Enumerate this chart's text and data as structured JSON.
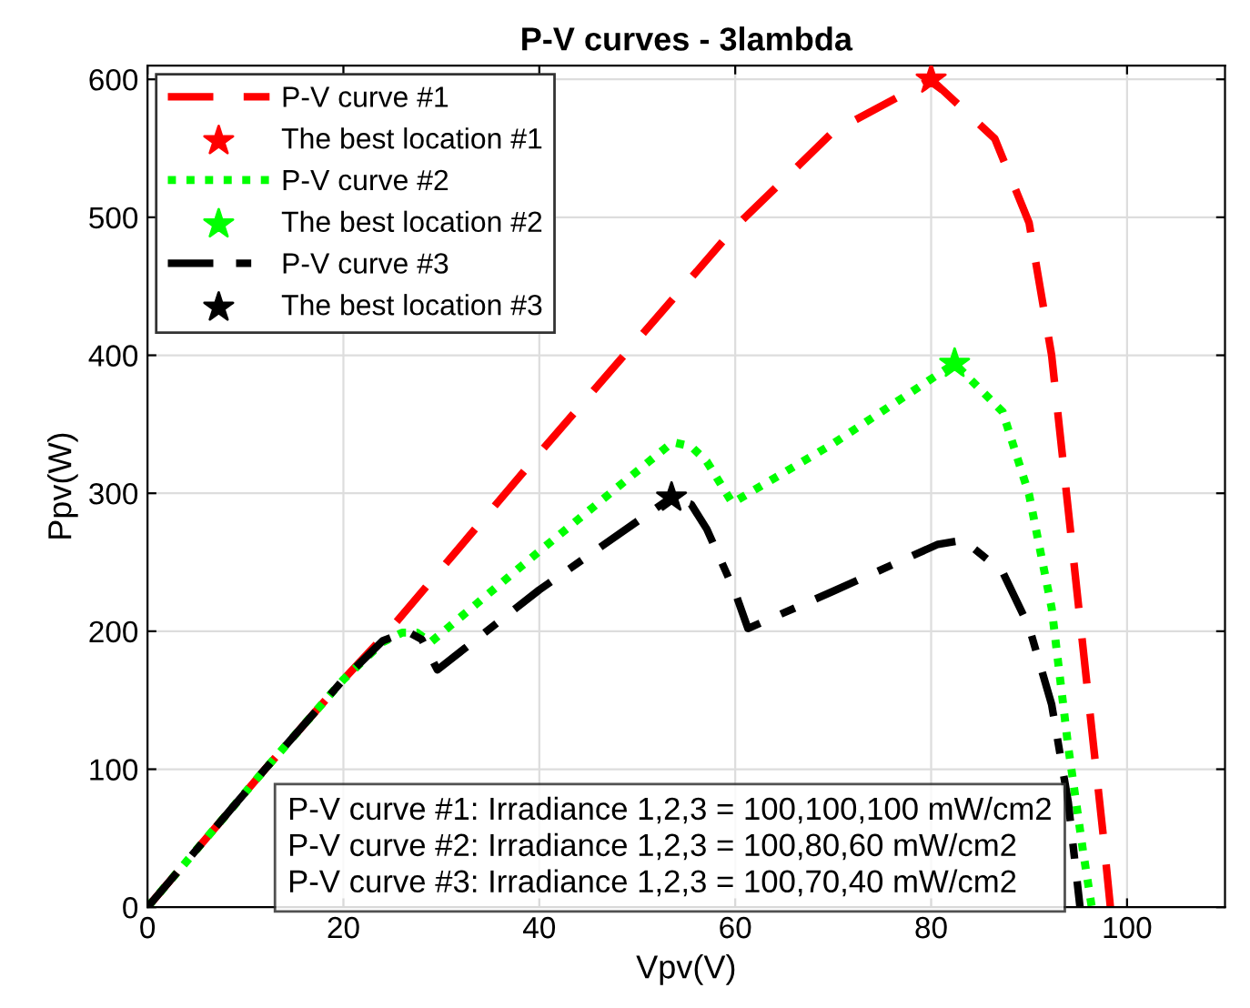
{
  "chart_data": {
    "type": "line",
    "title": "P-V curves - 3lambda",
    "xlabel": "Vpv(V)",
    "ylabel": "Ppv(W)",
    "xlim": [
      0,
      110
    ],
    "ylim": [
      0,
      610
    ],
    "xticks": [
      0,
      20,
      40,
      60,
      80,
      100
    ],
    "yticks": [
      0,
      100,
      200,
      300,
      400,
      500,
      600
    ],
    "grid": true,
    "legend": "top left",
    "annotations": [
      "P-V curve #1: Irradiance 1,2,3 = 100,100,100 mW/cm2",
      "P-V curve #2: Irradiance 1,2,3 = 100,80,60 mW/cm2",
      "P-V curve #3: Irradiance 1,2,3 = 100,70,40 mW/cm2"
    ],
    "series": [
      {
        "name": "P-V curve #1",
        "color": "#ff0000",
        "line_style": "dashed",
        "marker": "none",
        "x": [
          0,
          12,
          20,
          24.6,
          40,
          60,
          70,
          80,
          86.5,
          90,
          92.3,
          94.3,
          96.2,
          97.6,
          98.3
        ],
        "values": [
          0,
          100,
          165,
          200,
          329,
          493,
          562,
          600,
          557,
          496,
          400,
          268,
          142,
          50,
          0
        ]
      },
      {
        "name": "The best location #1",
        "type": "scatter",
        "color": "#ff0000",
        "marker": "star",
        "x": [
          80
        ],
        "values": [
          600
        ]
      },
      {
        "name": "P-V curve #2",
        "color": "#00ff00",
        "line_style": "dotted",
        "marker": "none",
        "x": [
          0,
          12,
          20,
          24,
          26,
          27.5,
          28.9,
          40,
          53.6,
          55.5,
          57.1,
          59.7,
          70,
          82.4,
          87.3,
          90,
          92.3,
          94,
          95.5,
          96.4
        ],
        "values": [
          0,
          100,
          165,
          192,
          199,
          199,
          192,
          258,
          337,
          334,
          323,
          293,
          336,
          394,
          359,
          299,
          217,
          116,
          41,
          0
        ]
      },
      {
        "name": "The best location #2",
        "type": "scatter",
        "color": "#00ff00",
        "marker": "star",
        "x": [
          82.4
        ],
        "values": [
          394
        ]
      },
      {
        "name": "P-V curve #3",
        "color": "#000000",
        "line_style": "dashdot",
        "marker": "none",
        "x": [
          0,
          12,
          20,
          24,
          26.5,
          28,
          29.6,
          40,
          53.5,
          55.5,
          57.1,
          60,
          61.3,
          70,
          80.7,
          83.3,
          87.3,
          90,
          92.3,
          94,
          95.2
        ],
        "values": [
          0,
          100,
          165,
          193,
          200,
          194,
          172,
          230,
          297,
          292,
          274,
          228,
          202,
          229,
          263,
          266,
          243,
          203,
          147,
          76,
          0
        ]
      },
      {
        "name": "The best location #3",
        "type": "scatter",
        "color": "#000000",
        "marker": "star",
        "x": [
          53.5
        ],
        "values": [
          297
        ]
      }
    ]
  }
}
